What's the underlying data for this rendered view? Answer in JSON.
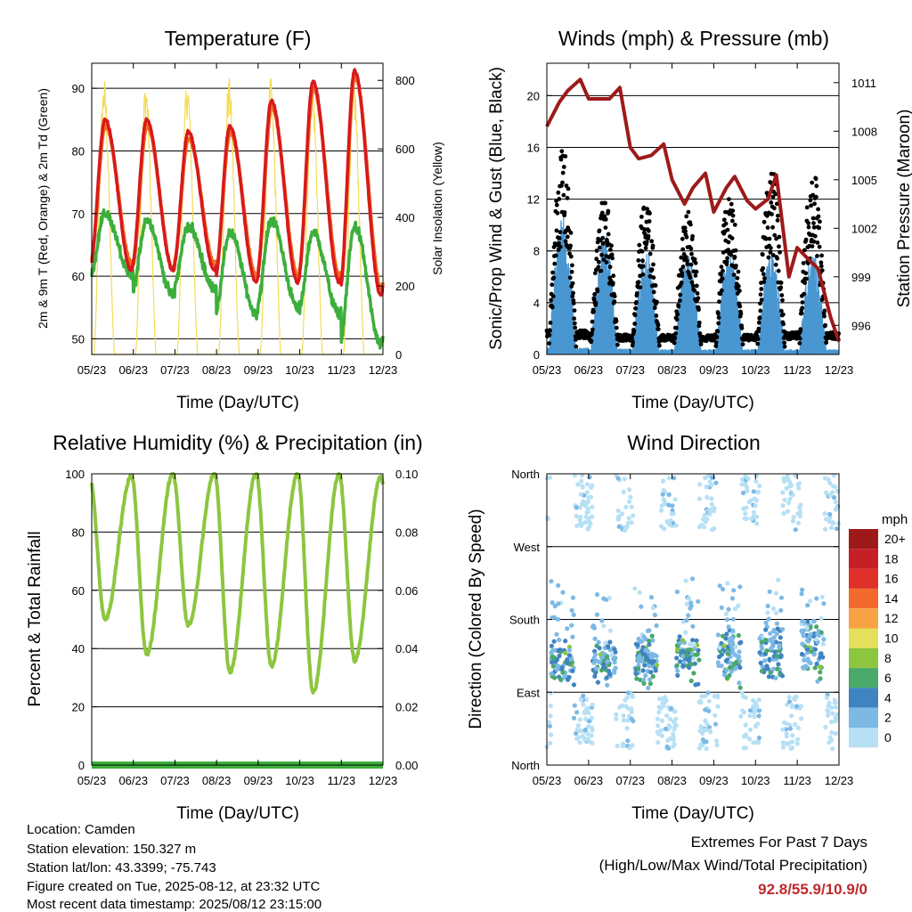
{
  "colors": {
    "t2m": "#d7191c",
    "t9m": "#f46d1f",
    "td": "#3cae3c",
    "solar": "#f2dc5a",
    "gust": "#000000",
    "wind": "#4a97d1",
    "pressure": "#9e1a1a",
    "rh": "#8cc63f",
    "precip": "#3cae3c",
    "extremes": "#c0282d"
  },
  "footer": {
    "location": "Location: Camden",
    "elevation": "Station elevation: 150.327 m",
    "latlon": "Station lat/lon: 43.3399; -75.743",
    "created": "Figure created on Tue, 2025-08-12, at 23:32 UTC",
    "recent": "Most recent data timestamp: 2025/08/12 23:15:00"
  },
  "extremes": {
    "title": "Extremes For Past 7 Days",
    "subtitle": "(High/Low/Max Wind/Total Precipitation)",
    "values": "92.8/55.9/10.9/0"
  },
  "chart_data": [
    {
      "type": "line",
      "title": "Temperature (F)",
      "xlabel": "Time (Day/UTC)",
      "ylabel": "2m & 9m T (Red, Orange) & 2m Td (Green)",
      "y2label": "Solar Insolation (Yellow)",
      "x_ticks": [
        "05/23",
        "06/23",
        "07/23",
        "08/23",
        "09/23",
        "10/23",
        "11/23",
        "12/23"
      ],
      "ylim": [
        47.5,
        94
      ],
      "y_ticks": [
        50,
        60,
        70,
        80,
        90
      ],
      "y2lim": [
        0,
        850
      ],
      "y2_ticks": [
        0,
        200,
        400,
        600,
        800
      ],
      "grid": true,
      "series": [
        {
          "color_key": "t2m",
          "highs": [
            85,
            85,
            83,
            84,
            88,
            91,
            92.8
          ],
          "lows": [
            61,
            61,
            61,
            59,
            59,
            59,
            57
          ]
        },
        {
          "color_key": "t9m",
          "highs": [
            84,
            84,
            82,
            83,
            87,
            90,
            92
          ],
          "lows": [
            62,
            61,
            62,
            60,
            60,
            60,
            58
          ]
        },
        {
          "color_key": "td",
          "highs": [
            70,
            69,
            68,
            67,
            69,
            67,
            68
          ],
          "lows": [
            60,
            57,
            58,
            54,
            55,
            54,
            49
          ]
        },
        {
          "color_key": "solar",
          "peak": 810
        }
      ]
    },
    {
      "type": "scatter",
      "title": "Winds (mph) & Pressure (mb)",
      "xlabel": "Time (Day/UTC)",
      "ylabel": "Sonic/Prop Wind & Gust (Blue, Black)",
      "y2label": "Station Pressure (Maroon)",
      "x_ticks": [
        "05/23",
        "06/23",
        "07/23",
        "08/23",
        "09/23",
        "10/23",
        "11/23",
        "12/23"
      ],
      "ylim": [
        0,
        22.5
      ],
      "y_ticks": [
        0,
        4,
        8,
        12,
        16,
        20
      ],
      "y2lim": [
        994.2,
        1012.2
      ],
      "y2_ticks": [
        996,
        999,
        1002,
        1005,
        1008,
        1011
      ],
      "grid": true,
      "series": [
        {
          "color_key": "gust",
          "daily_max": [
            15.7,
            11.7,
            11.5,
            11.0,
            12.0,
            14.3,
            14.0
          ]
        },
        {
          "color_key": "wind",
          "daily_max": [
            10.9,
            9.5,
            8.2,
            8.0,
            8.2,
            8.0,
            8.0
          ]
        },
        {
          "color_key": "pressure",
          "x": [
            0,
            0.3,
            0.5,
            0.8,
            1.0,
            1.2,
            1.5,
            1.75,
            2.0,
            2.2,
            2.5,
            2.8,
            3.0,
            3.3,
            3.5,
            3.8,
            4.0,
            4.3,
            4.5,
            4.8,
            5.0,
            5.3,
            5.5,
            5.8,
            6.0,
            6.3,
            6.5,
            6.8,
            7.0
          ],
          "y": [
            1008.3,
            1009.8,
            1010.5,
            1011.2,
            1010.0,
            1010.0,
            1010.0,
            1010.7,
            1007.0,
            1006.3,
            1006.5,
            1007.2,
            1005.0,
            1003.5,
            1004.5,
            1005.4,
            1003.0,
            1004.5,
            1005.2,
            1003.7,
            1003.2,
            1003.8,
            1005.3,
            999.0,
            1000.8,
            1000.0,
            999.5,
            996.5,
            995.0
          ]
        }
      ]
    },
    {
      "type": "line",
      "title": "Relative Humidity (%) & Precipitation (in)",
      "xlabel": "Time (Day/UTC)",
      "ylabel": "Percent & Total Rainfall",
      "x_ticks": [
        "05/23",
        "06/23",
        "07/23",
        "08/23",
        "09/23",
        "10/23",
        "11/23",
        "12/23"
      ],
      "ylim": [
        0,
        100
      ],
      "y_ticks": [
        0,
        20,
        40,
        60,
        80,
        100
      ],
      "y2lim": [
        0,
        0.1
      ],
      "y2_ticks": [
        "0.00",
        "0.02",
        "0.04",
        "0.06",
        "0.08",
        "0.10"
      ],
      "grid": true,
      "series": [
        {
          "color_key": "rh",
          "highs": [
            99,
            100,
            100,
            100,
            100,
            100,
            99
          ],
          "lows": [
            50,
            38,
            48,
            32,
            34,
            25,
            36
          ]
        },
        {
          "color_key": "precip",
          "values": [
            0,
            0,
            0,
            0,
            0,
            0,
            0,
            0
          ]
        }
      ]
    },
    {
      "type": "scatter",
      "title": "Wind Direction",
      "xlabel": "Time (Day/UTC)",
      "ylabel": "Direction (Colored By Speed)",
      "x_ticks": [
        "05/23",
        "06/23",
        "07/23",
        "08/23",
        "09/23",
        "10/23",
        "11/23",
        "12/23"
      ],
      "y_ticks": [
        "North",
        "East",
        "South",
        "West",
        "North"
      ],
      "ylim": [
        0,
        360
      ],
      "grid": true,
      "legend": {
        "title": "mph",
        "labels": [
          "20+",
          "18",
          "16",
          "14",
          "12",
          "10",
          "8",
          "6",
          "4",
          "2",
          "0"
        ],
        "colors": [
          "#9e1a1a",
          "#c52026",
          "#e0302a",
          "#f26a2e",
          "#f7a243",
          "#e6df5b",
          "#8cc63f",
          "#4aa869",
          "#3f84c1",
          "#7db9e5",
          "#b7e0f5"
        ]
      }
    }
  ]
}
